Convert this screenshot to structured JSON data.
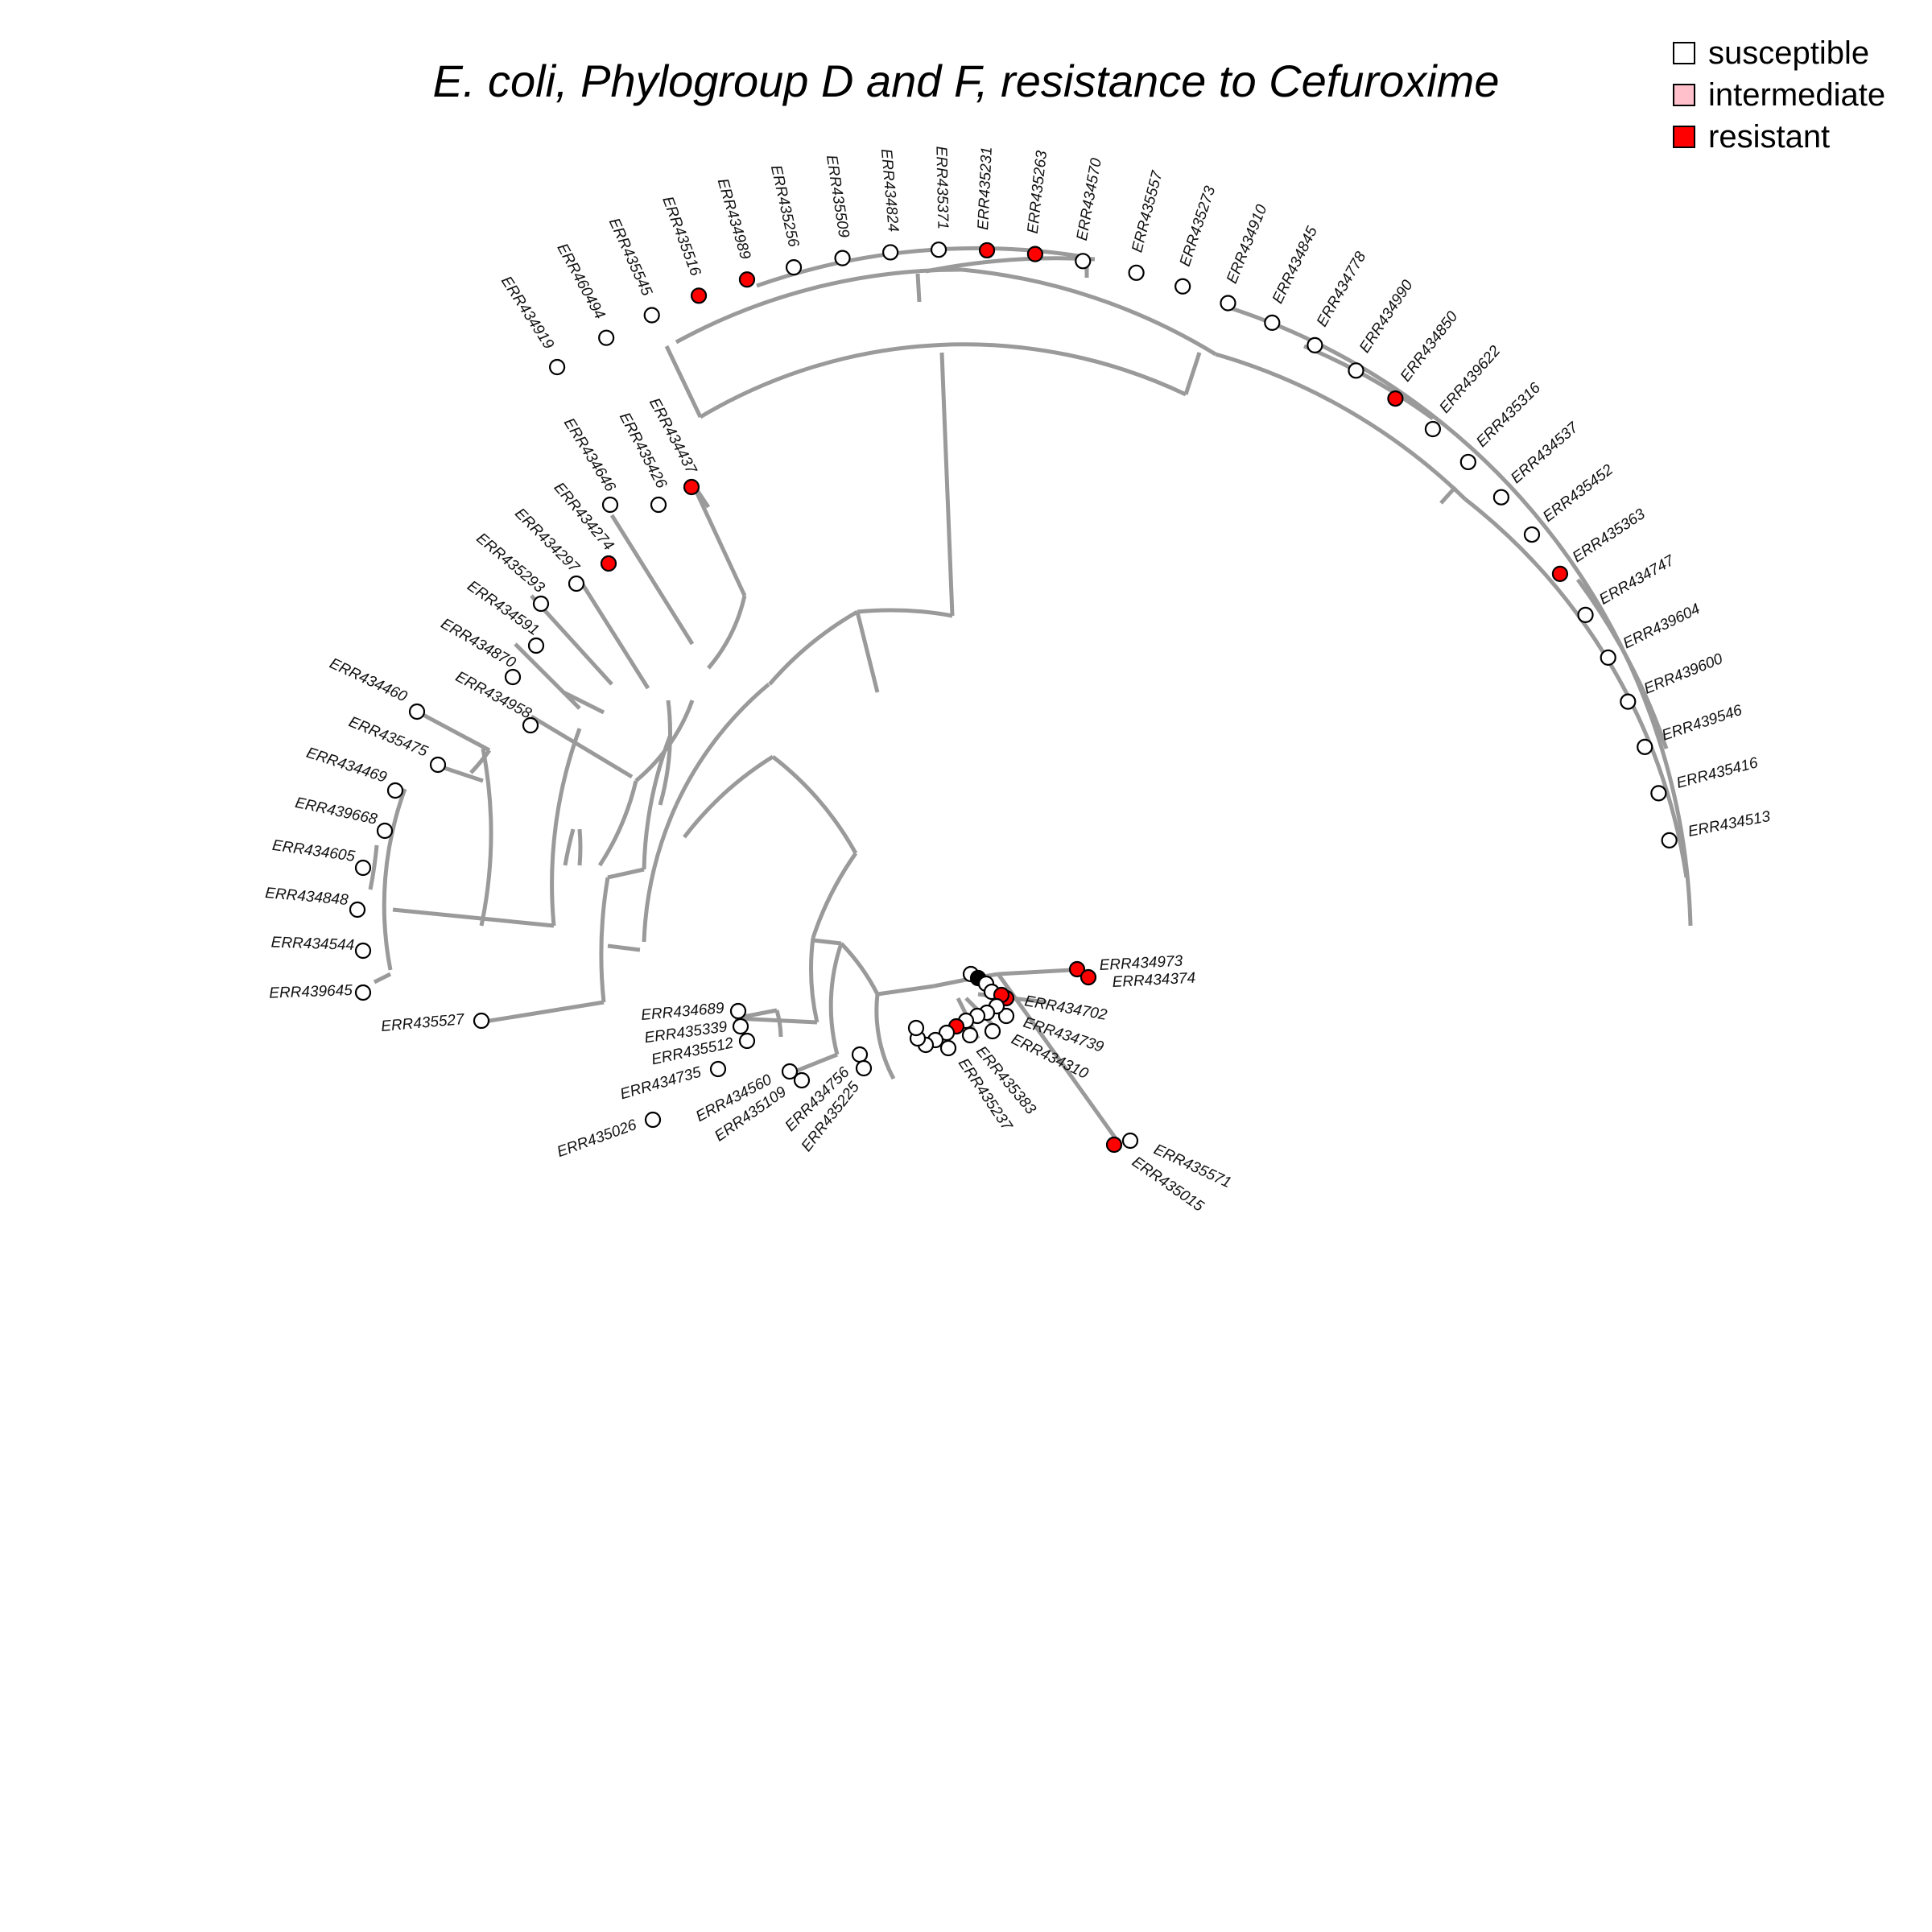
{
  "title": "E. coli, Phylogroup D and F, resistance to Cefuroxime",
  "legend": [
    {
      "label": "susceptible",
      "color": "#ffffff"
    },
    {
      "label": "intermediate",
      "color": "#ffc0cb"
    },
    {
      "label": "resistant",
      "color": "#ff0000"
    }
  ],
  "colors": {
    "branch": "#9a9a9a",
    "susceptible": "#ffffff",
    "resistant": "#ff0000"
  },
  "tips": {
    "upper_arc": [
      {
        "label": "ERR434919",
        "status": "susceptible"
      },
      {
        "label": "ERR460494",
        "status": "susceptible"
      },
      {
        "label": "ERR435545",
        "status": "susceptible"
      },
      {
        "label": "ERR435516",
        "status": "resistant"
      },
      {
        "label": "ERR434989",
        "status": "resistant"
      },
      {
        "label": "ERR435256",
        "status": "susceptible"
      },
      {
        "label": "ERR435509",
        "status": "susceptible"
      },
      {
        "label": "ERR434824",
        "status": "susceptible"
      },
      {
        "label": "ERR435371",
        "status": "susceptible"
      },
      {
        "label": "ERR435231",
        "status": "resistant"
      },
      {
        "label": "ERR435263",
        "status": "resistant"
      },
      {
        "label": "ERR434570",
        "status": "susceptible"
      },
      {
        "label": "ERR435557",
        "status": "susceptible"
      },
      {
        "label": "ERR435273",
        "status": "susceptible"
      },
      {
        "label": "ERR434910",
        "status": "susceptible"
      },
      {
        "label": "ERR434845",
        "status": "susceptible"
      },
      {
        "label": "ERR434778",
        "status": "susceptible"
      },
      {
        "label": "ERR434990",
        "status": "susceptible"
      },
      {
        "label": "ERR434850",
        "status": "resistant"
      },
      {
        "label": "ERR439622",
        "status": "susceptible"
      },
      {
        "label": "ERR435316",
        "status": "susceptible"
      },
      {
        "label": "ERR434537",
        "status": "susceptible"
      },
      {
        "label": "ERR435452",
        "status": "susceptible"
      },
      {
        "label": "ERR435363",
        "status": "resistant"
      },
      {
        "label": "ERR434747",
        "status": "susceptible"
      },
      {
        "label": "ERR439604",
        "status": "susceptible"
      },
      {
        "label": "ERR439600",
        "status": "susceptible"
      },
      {
        "label": "ERR439546",
        "status": "susceptible"
      },
      {
        "label": "ERR435416",
        "status": "susceptible"
      },
      {
        "label": "ERR434513",
        "status": "susceptible"
      }
    ],
    "left_group": [
      {
        "label": "ERR434437",
        "status": "resistant"
      },
      {
        "label": "ERR435426",
        "status": "susceptible"
      },
      {
        "label": "ERR434646",
        "status": "susceptible"
      },
      {
        "label": "ERR434274",
        "status": "resistant"
      },
      {
        "label": "ERR434297",
        "status": "susceptible"
      },
      {
        "label": "ERR435293",
        "status": "susceptible"
      },
      {
        "label": "ERR434591",
        "status": "susceptible"
      },
      {
        "label": "ERR434870",
        "status": "susceptible"
      },
      {
        "label": "ERR434958",
        "status": "susceptible"
      },
      {
        "label": "ERR434460",
        "status": "susceptible"
      },
      {
        "label": "ERR435475",
        "status": "susceptible"
      },
      {
        "label": "ERR434469",
        "status": "susceptible"
      },
      {
        "label": "ERR439668",
        "status": "susceptible"
      },
      {
        "label": "ERR434605",
        "status": "susceptible"
      },
      {
        "label": "ERR434848",
        "status": "susceptible"
      },
      {
        "label": "ERR434544",
        "status": "susceptible"
      },
      {
        "label": "ERR439645",
        "status": "susceptible"
      },
      {
        "label": "ERR435527",
        "status": "susceptible"
      }
    ],
    "lower_group": [
      {
        "label": "ERR434689",
        "status": "susceptible"
      },
      {
        "label": "ERR435339",
        "status": "susceptible"
      },
      {
        "label": "ERR435512",
        "status": "susceptible"
      },
      {
        "label": "ERR434735",
        "status": "susceptible"
      },
      {
        "label": "ERR435026",
        "status": "susceptible"
      },
      {
        "label": "ERR434560",
        "status": "susceptible"
      },
      {
        "label": "ERR435109",
        "status": "susceptible"
      },
      {
        "label": "ERR434756",
        "status": "susceptible"
      },
      {
        "label": "ERR435225",
        "status": "susceptible"
      },
      {
        "label": "ERR434973",
        "status": "resistant"
      },
      {
        "label": "ERR434374",
        "status": "resistant"
      },
      {
        "label": "ERR434702",
        "status": "resistant"
      },
      {
        "label": "ERR434739",
        "status": "susceptible"
      },
      {
        "label": "ERR434310",
        "status": "susceptible"
      },
      {
        "label": "ERR435383",
        "status": "susceptible"
      },
      {
        "label": "ERR435237",
        "status": "susceptible"
      },
      {
        "label": "ERR435571",
        "status": "susceptible"
      },
      {
        "label": "ERR435015",
        "status": "resistant"
      }
    ]
  }
}
